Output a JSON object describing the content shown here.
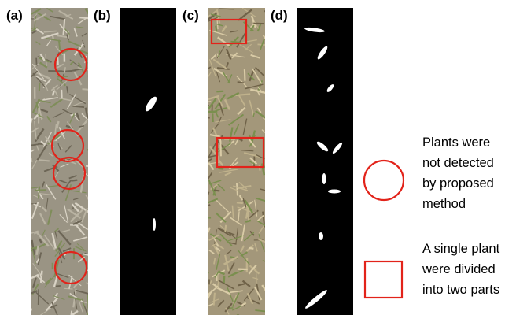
{
  "panels": [
    {
      "label": "(a)"
    },
    {
      "label": "(b)"
    },
    {
      "label": "(c)"
    },
    {
      "label": "(d)"
    }
  ],
  "legend": [
    {
      "lines": [
        "Plants were",
        "not detected",
        "by proposed",
        "method"
      ]
    },
    {
      "lines": [
        "A single plant",
        "were divided",
        "into two parts"
      ]
    }
  ]
}
